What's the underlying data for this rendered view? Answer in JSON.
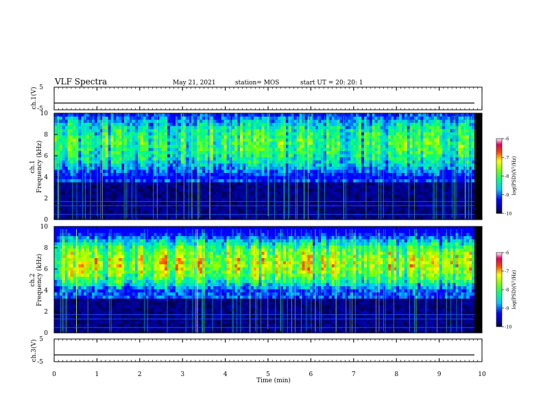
{
  "header": {
    "title": "VLF Spectra",
    "date": "May 21, 2021",
    "station": "station= MOS",
    "start": "start  UT  =   20: 20: 1"
  },
  "chart_data": [
    {
      "type": "line",
      "ylabel": "ch.1(V)",
      "ylim": [
        -5,
        5
      ],
      "yticks": [
        "5",
        "-5"
      ],
      "series": [
        {
          "values": [
            -2,
            -2
          ]
        }
      ]
    },
    {
      "type": "heatmap",
      "ylabel_channel": "ch.1",
      "ylabel": "Frequency (kHz)",
      "ylim": [
        0,
        10
      ],
      "yticks": [
        "0",
        "2",
        "4",
        "6",
        "8",
        "10"
      ],
      "xlim": [
        0,
        10
      ],
      "lower_cutoff_khz": 3.8,
      "strong_band_khz": [
        5.0,
        9.0
      ],
      "colorbar": {
        "label": "log(PSD)(V²/Hz)",
        "ticks": [
          "-6",
          "-7",
          "-8",
          "-9",
          "-10"
        ],
        "range": [
          -10,
          -6
        ]
      }
    },
    {
      "type": "heatmap",
      "ylabel_channel": "ch.2",
      "ylabel": "Frequency (kHz)",
      "ylim": [
        0,
        10
      ],
      "yticks": [
        "0",
        "2",
        "4",
        "6",
        "8",
        "10"
      ],
      "xlim": [
        0,
        10
      ],
      "lower_cutoff_khz": 3.6,
      "strong_band_khz": [
        4.8,
        8.0
      ],
      "colorbar": {
        "label": "log(PSD)(V²/Hz)",
        "ticks": [
          "-6",
          "-7",
          "-8",
          "-9",
          "-10"
        ],
        "range": [
          -10,
          -6
        ]
      }
    },
    {
      "type": "line",
      "ylabel": "ch.3(V)",
      "ylim": [
        -5,
        5
      ],
      "yticks": [
        "5",
        "-5"
      ],
      "series": [
        {
          "values": [
            -2,
            -2
          ]
        }
      ]
    }
  ],
  "xaxis": {
    "label": "Time  (min)",
    "range": [
      0,
      10
    ],
    "ticks": [
      "0",
      "1",
      "2",
      "3",
      "4",
      "5",
      "6",
      "7",
      "8",
      "9",
      "10"
    ]
  }
}
